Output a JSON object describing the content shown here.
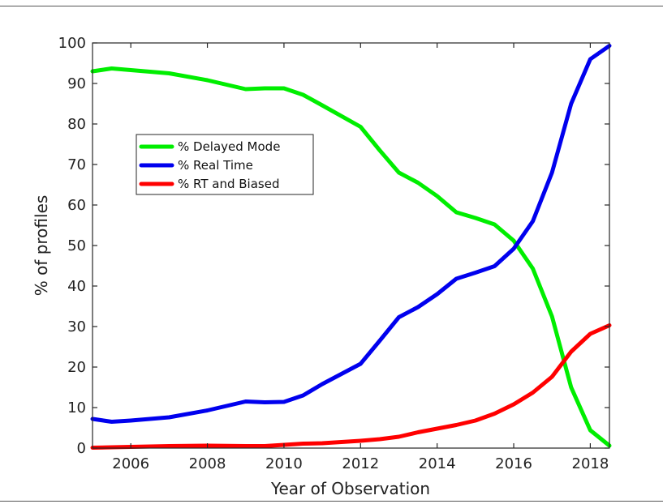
{
  "chart_data": {
    "type": "line",
    "title": "",
    "xlabel": "Year of Observation",
    "ylabel": "% of profiles",
    "xlim": [
      2005,
      2018.5
    ],
    "ylim": [
      0,
      100
    ],
    "xticks": [
      2006,
      2008,
      2010,
      2012,
      2014,
      2016,
      2018
    ],
    "yticks": [
      0,
      10,
      20,
      30,
      40,
      50,
      60,
      70,
      80,
      90,
      100
    ],
    "grid": false,
    "legend_position": "upper-left",
    "series": [
      {
        "name": "% Delayed Mode",
        "color": "#00ee00",
        "x": [
          2005,
          2005.5,
          2006,
          2007,
          2008,
          2009,
          2009.5,
          2010,
          2010.5,
          2011,
          2012,
          2012.5,
          2013,
          2013.5,
          2014,
          2014.5,
          2015,
          2015.5,
          2016,
          2016.5,
          2017,
          2017.5,
          2018,
          2018.5
        ],
        "values": [
          93,
          93.7,
          93.3,
          92.5,
          90.8,
          88.6,
          88.8,
          88.8,
          87.2,
          84.6,
          79.3,
          73.5,
          68,
          65.5,
          62.2,
          58.2,
          56.8,
          55.2,
          51.2,
          44.3,
          32.5,
          15,
          4.4,
          0.6
        ]
      },
      {
        "name": "% Real Time",
        "color": "#0000ee",
        "x": [
          2005,
          2005.5,
          2006,
          2007,
          2008,
          2009,
          2009.5,
          2010,
          2010.5,
          2011,
          2012,
          2012.5,
          2013,
          2013.5,
          2014,
          2014.5,
          2015,
          2015.5,
          2016,
          2016.5,
          2017,
          2017.5,
          2018,
          2018.5
        ],
        "values": [
          7.2,
          6.5,
          6.8,
          7.6,
          9.3,
          11.5,
          11.3,
          11.4,
          13,
          15.8,
          20.8,
          26.5,
          32.3,
          34.8,
          38,
          41.8,
          43.3,
          44.9,
          49.2,
          56,
          68,
          85,
          96,
          99.3
        ]
      },
      {
        "name": "% RT and Biased",
        "color": "#ff0000",
        "x": [
          2005,
          2005.5,
          2006,
          2007,
          2008,
          2009,
          2009.5,
          2010,
          2010.5,
          2011,
          2012,
          2012.5,
          2013,
          2013.5,
          2014,
          2014.5,
          2015,
          2015.5,
          2016,
          2016.5,
          2017,
          2017.5,
          2018,
          2018.5
        ],
        "values": [
          0.1,
          0.2,
          0.3,
          0.5,
          0.6,
          0.5,
          0.5,
          0.8,
          1.1,
          1.2,
          1.8,
          2.2,
          2.8,
          3.9,
          4.8,
          5.7,
          6.8,
          8.5,
          10.8,
          13.7,
          17.6,
          23.8,
          28.2,
          30.3
        ]
      }
    ]
  }
}
